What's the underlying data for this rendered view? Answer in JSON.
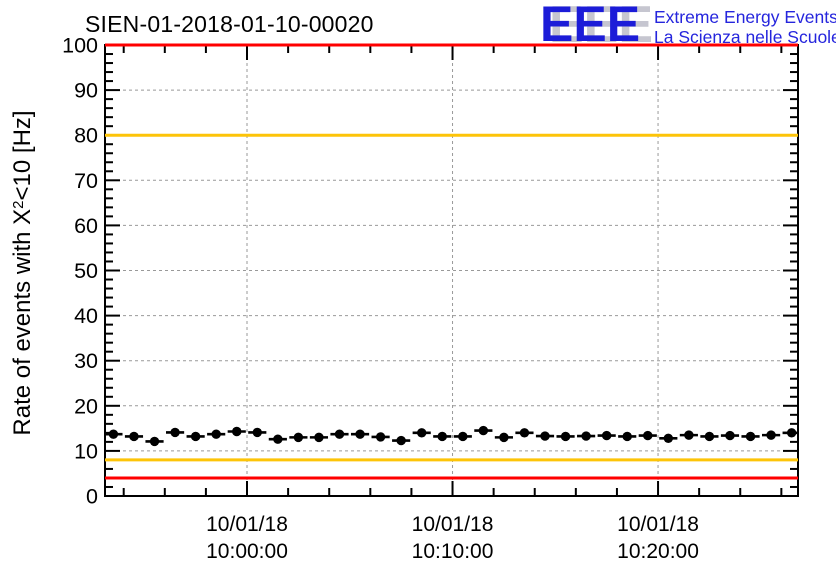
{
  "logo": {
    "acronym": "EEE",
    "line1": "Extreme Energy Events",
    "line2": "La Scienza nelle Scuole",
    "blue": "#1c1cd8",
    "shadow_gray": "#c6c6d0"
  },
  "colors": {
    "alarm": "#ff0000",
    "warning": "#fdc408",
    "grid": "#999999",
    "axis": "#000000",
    "marker": "#000000"
  },
  "chart_data": {
    "type": "scatter",
    "title": "SIEN-01-2018-01-10-00020",
    "ylabel": "Rate of events with X^2<10 [Hz]",
    "ylabel_parts": {
      "prefix": "Rate of events with X",
      "sup": "2",
      "suffix": "<10 [Hz]"
    },
    "ylim": [
      0,
      100
    ],
    "y_major_step": 10,
    "y_minor_step": 2,
    "grid": "dashed",
    "x_axis": {
      "range_minutes_rel_10_00": [
        -6.91,
        26.81
      ],
      "minor_step_minutes": 2,
      "major_ticks": [
        {
          "minute": 0,
          "date": "10/01/18",
          "time": "10:00:00"
        },
        {
          "minute": 10,
          "date": "10/01/18",
          "time": "10:10:00"
        },
        {
          "minute": 20,
          "date": "10/01/18",
          "time": "10:20:00"
        }
      ]
    },
    "thresholds": [
      {
        "name": "alarm-high",
        "value": 100,
        "color": "#ff0000"
      },
      {
        "name": "warning-high",
        "value": 80,
        "color": "#fdc408"
      },
      {
        "name": "warning-low",
        "value": 8,
        "color": "#fdc408"
      },
      {
        "name": "alarm-low",
        "value": 4,
        "color": "#ff0000"
      }
    ],
    "series": [
      {
        "name": "event-rate",
        "marker": "filled-circle",
        "color": "#000000",
        "date": "10/01/18",
        "bin_width_minutes": 1,
        "start_minute_rel_10_00": -6.5,
        "step_minutes": 1,
        "times": [
          "09:53:30",
          "09:54:30",
          "09:55:30",
          "09:56:30",
          "09:57:30",
          "09:58:30",
          "09:59:30",
          "10:00:30",
          "10:01:30",
          "10:02:30",
          "10:03:30",
          "10:04:30",
          "10:05:30",
          "10:06:30",
          "10:07:30",
          "10:08:30",
          "10:09:30",
          "10:10:30",
          "10:11:30",
          "10:12:30",
          "10:13:30",
          "10:14:30",
          "10:15:30",
          "10:16:30",
          "10:17:30",
          "10:18:30",
          "10:19:30",
          "10:20:30",
          "10:21:30",
          "10:22:30",
          "10:23:30",
          "10:24:30",
          "10:25:30",
          "10:26:30"
        ],
        "values": [
          13.7,
          13.2,
          12.1,
          14.1,
          13.2,
          13.7,
          14.3,
          14.1,
          12.6,
          13.0,
          13.0,
          13.7,
          13.7,
          13.1,
          12.3,
          14.0,
          13.2,
          13.2,
          14.5,
          13.0,
          14.0,
          13.3,
          13.2,
          13.3,
          13.4,
          13.2,
          13.4,
          12.8,
          13.5,
          13.2,
          13.4,
          13.2,
          13.5,
          14.0
        ]
      }
    ]
  }
}
